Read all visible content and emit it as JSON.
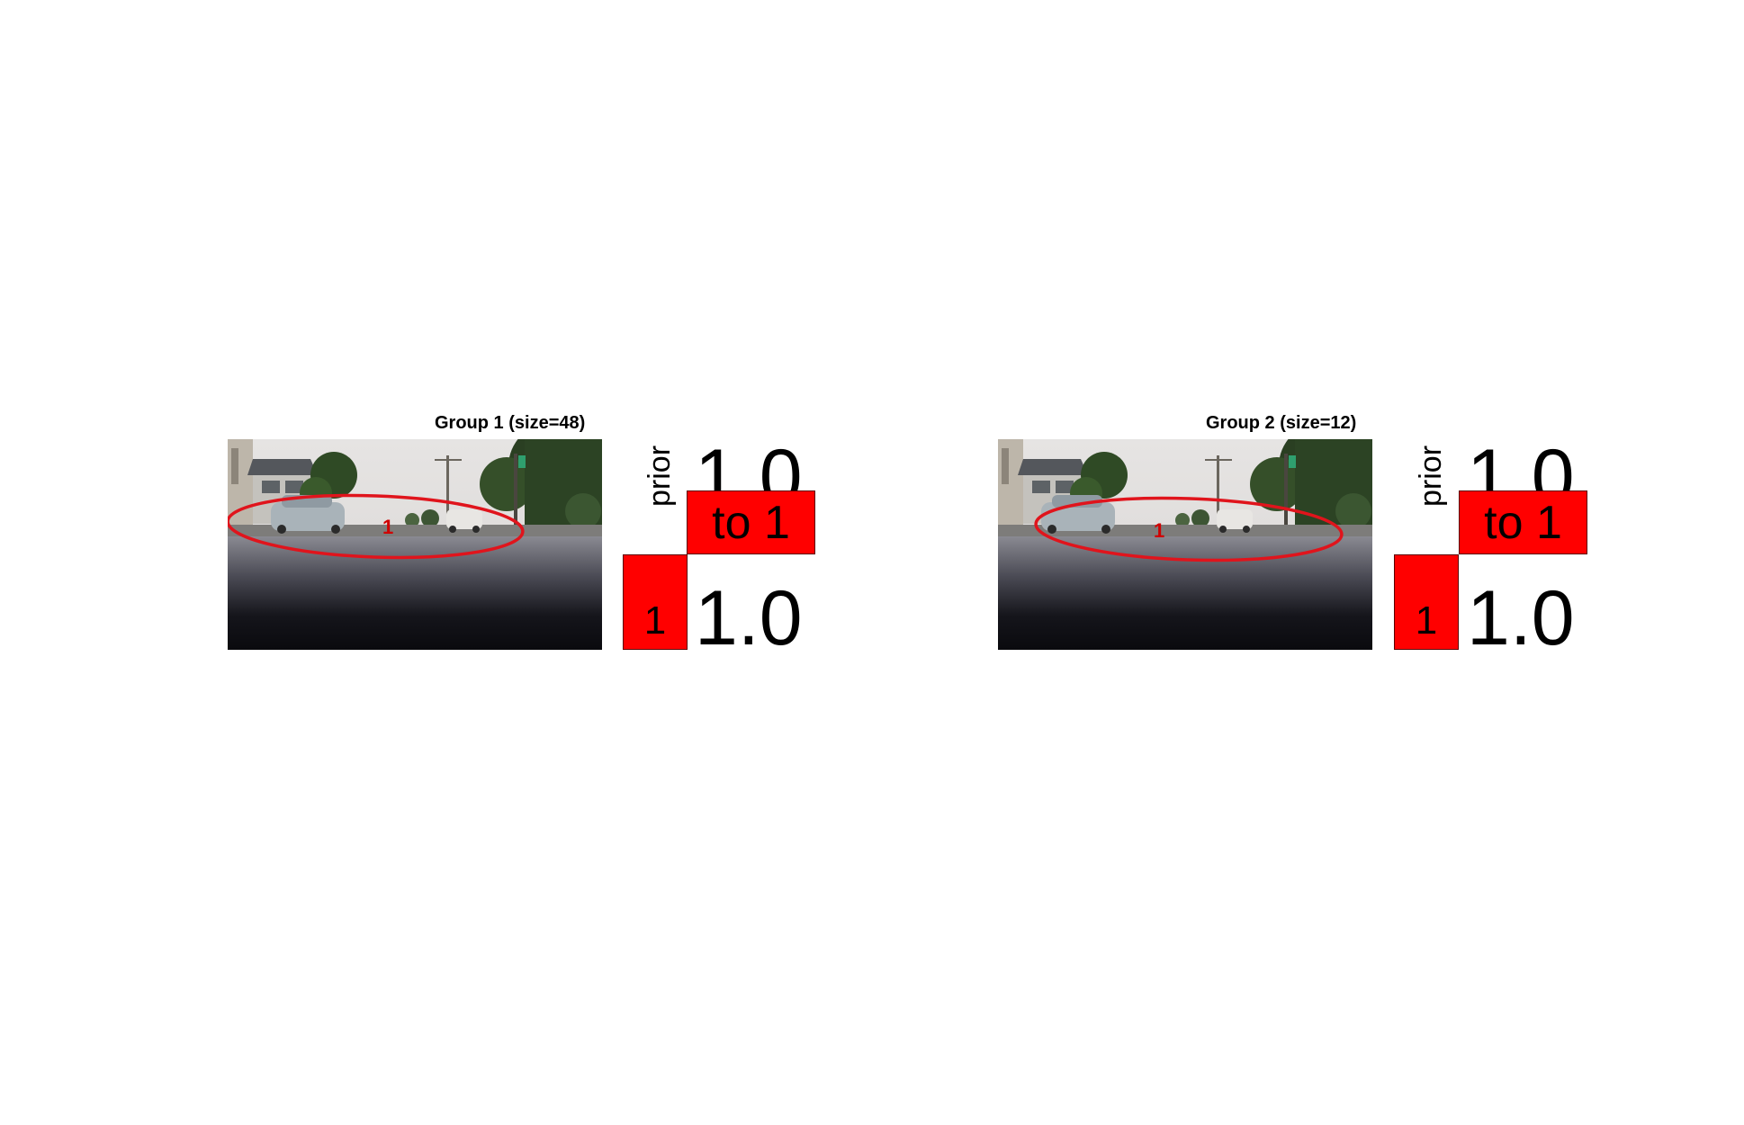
{
  "chart_data": [
    {
      "type": "heatmap",
      "title": "Group 1 (size=48)",
      "ylabel": "prior",
      "object_label": "1",
      "top_value": "1.0",
      "top_cell_label": "to 1",
      "left_cell_label": "1",
      "bottom_value": "1.0",
      "cell_color": "#ff0000",
      "ellipse_color": "#e0141c"
    },
    {
      "type": "heatmap",
      "title": "Group 2 (size=12)",
      "ylabel": "prior",
      "object_label": "1",
      "top_value": "1.0",
      "top_cell_label": "to 1",
      "left_cell_label": "1",
      "bottom_value": "1.0",
      "cell_color": "#ff0000",
      "ellipse_color": "#e0141c"
    }
  ]
}
